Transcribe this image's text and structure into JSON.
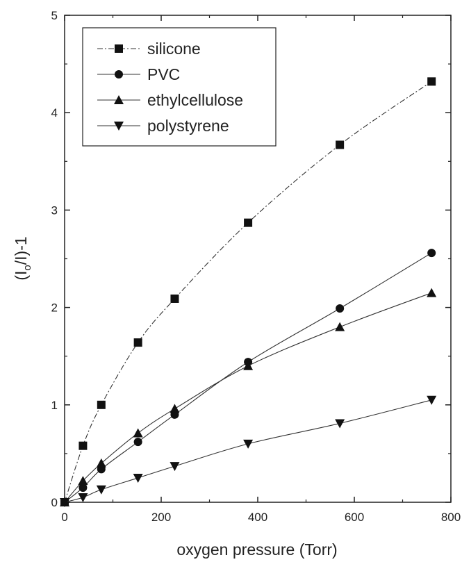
{
  "chart_data": {
    "type": "line",
    "title": "",
    "xlabel": "oxygen pressure (Torr)",
    "ylabel_main": "(I",
    "ylabel_sub": "o",
    "ylabel_tail": "/I)-1",
    "xlim": [
      0,
      800
    ],
    "ylim": [
      0,
      5
    ],
    "xticks": [
      0,
      200,
      400,
      600,
      800
    ],
    "yticks": [
      0,
      1,
      2,
      3,
      4,
      5
    ],
    "grid": false,
    "legend_position": "top-left",
    "series": [
      {
        "name": "silicone",
        "marker": "square",
        "dash": "8,3,2,3",
        "x": [
          0,
          38,
          76,
          152,
          228,
          380,
          570,
          760
        ],
        "y": [
          0,
          0.58,
          1.0,
          1.64,
          2.09,
          2.87,
          3.67,
          4.32
        ]
      },
      {
        "name": "PVC",
        "marker": "circle",
        "dash": "",
        "x": [
          0,
          38,
          76,
          152,
          228,
          380,
          570,
          760
        ],
        "y": [
          0,
          0.15,
          0.34,
          0.62,
          0.9,
          1.44,
          1.99,
          2.56
        ]
      },
      {
        "name": "ethylcellulose",
        "marker": "triangle-up",
        "dash": "",
        "x": [
          0,
          38,
          76,
          152,
          228,
          380,
          570,
          760
        ],
        "y": [
          0,
          0.22,
          0.4,
          0.71,
          0.96,
          1.4,
          1.8,
          2.15
        ]
      },
      {
        "name": "polystyrene",
        "marker": "triangle-down",
        "dash": "",
        "x": [
          0,
          38,
          76,
          152,
          228,
          380,
          570,
          760
        ],
        "y": [
          0,
          0.05,
          0.13,
          0.25,
          0.37,
          0.6,
          0.81,
          1.05
        ]
      }
    ]
  }
}
